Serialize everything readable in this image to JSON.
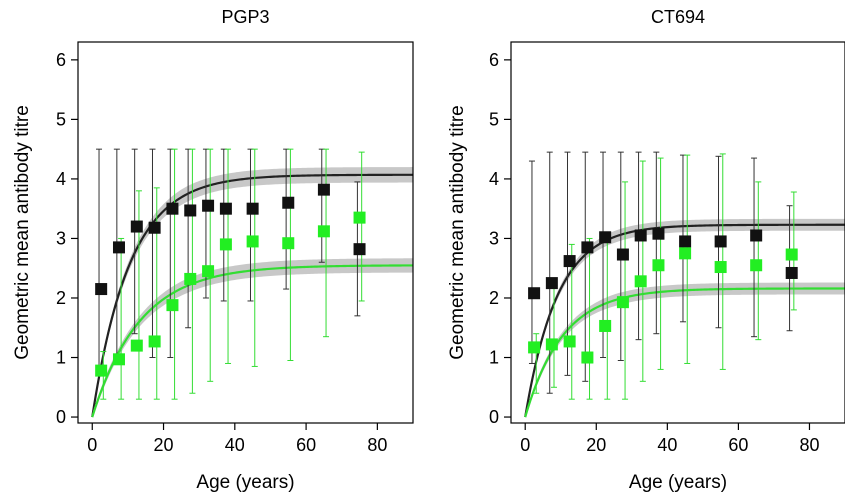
{
  "chart_data": [
    {
      "type": "scatter",
      "title": "PGP3",
      "xlabel": "Age (years)",
      "ylabel": "Geometric mean antibody titre",
      "xlim": [
        -4,
        90
      ],
      "ylim": [
        -0.1,
        6.3
      ],
      "xticks": [
        "0",
        "20",
        "40",
        "60",
        "80"
      ],
      "yticks": [
        "0",
        "1",
        "2",
        "3",
        "4",
        "5",
        "6"
      ],
      "grid": false,
      "series": [
        {
          "color": "#111111",
          "points": [
            {
              "x": 2.5,
              "y": 2.15,
              "low": 0.8,
              "high": 4.5
            },
            {
              "x": 7.5,
              "y": 2.85,
              "low": 0.9,
              "high": 4.5
            },
            {
              "x": 12.5,
              "y": 3.2,
              "low": 1.4,
              "high": 4.5
            },
            {
              "x": 17.5,
              "y": 3.18,
              "low": 1.0,
              "high": 4.5
            },
            {
              "x": 22.5,
              "y": 3.5,
              "low": 1.0,
              "high": 4.5
            },
            {
              "x": 27.5,
              "y": 3.47,
              "low": 1.5,
              "high": 4.5
            },
            {
              "x": 32.5,
              "y": 3.55,
              "low": 2.0,
              "high": 4.5
            },
            {
              "x": 37.5,
              "y": 3.5,
              "low": 1.95,
              "high": 4.5
            },
            {
              "x": 45,
              "y": 3.5,
              "low": 1.95,
              "high": 4.5
            },
            {
              "x": 55,
              "y": 3.6,
              "low": 2.15,
              "high": 4.5
            },
            {
              "x": 65,
              "y": 3.82,
              "low": 2.6,
              "high": 4.5
            },
            {
              "x": 75,
              "y": 2.82,
              "low": 1.7,
              "high": 3.95
            }
          ],
          "fit": {
            "asymptote": 4.07,
            "rate": 0.095,
            "band": 0.13
          }
        },
        {
          "color": "#22ee22",
          "points": [
            {
              "x": 2.5,
              "y": 0.78,
              "low": 0.3,
              "high": 1.1
            },
            {
              "x": 7.5,
              "y": 0.97,
              "low": 0.3,
              "high": 3.0
            },
            {
              "x": 12.5,
              "y": 1.2,
              "low": 0.3,
              "high": 3.8
            },
            {
              "x": 17.5,
              "y": 1.27,
              "low": 0.3,
              "high": 3.85
            },
            {
              "x": 22.5,
              "y": 1.88,
              "low": 0.3,
              "high": 4.5
            },
            {
              "x": 27.5,
              "y": 2.32,
              "low": 0.4,
              "high": 4.5
            },
            {
              "x": 32.5,
              "y": 2.45,
              "low": 0.6,
              "high": 4.5
            },
            {
              "x": 37.5,
              "y": 2.9,
              "low": 0.9,
              "high": 4.5
            },
            {
              "x": 45,
              "y": 2.95,
              "low": 0.85,
              "high": 4.5
            },
            {
              "x": 55,
              "y": 2.92,
              "low": 0.95,
              "high": 4.5
            },
            {
              "x": 65,
              "y": 3.12,
              "low": 1.35,
              "high": 4.5
            },
            {
              "x": 75,
              "y": 3.35,
              "low": 1.95,
              "high": 4.45
            }
          ],
          "fit": {
            "asymptote": 2.55,
            "rate": 0.075,
            "band": 0.12
          }
        }
      ]
    },
    {
      "type": "scatter",
      "title": "CT694",
      "xlabel": "Age (years)",
      "ylabel": "Geometric mean antibody titre",
      "xlim": [
        -4,
        90
      ],
      "ylim": [
        -0.1,
        6.3
      ],
      "xticks": [
        "0",
        "20",
        "40",
        "60",
        "80"
      ],
      "yticks": [
        "0",
        "1",
        "2",
        "3",
        "4",
        "5",
        "6"
      ],
      "grid": false,
      "series": [
        {
          "color": "#111111",
          "points": [
            {
              "x": 2.5,
              "y": 2.08,
              "low": 0.9,
              "high": 4.3
            },
            {
              "x": 7.5,
              "y": 2.25,
              "low": 0.4,
              "high": 4.45
            },
            {
              "x": 12.5,
              "y": 2.62,
              "low": 0.7,
              "high": 4.45
            },
            {
              "x": 17.5,
              "y": 2.85,
              "low": 0.6,
              "high": 4.45
            },
            {
              "x": 22.5,
              "y": 3.02,
              "low": 1.0,
              "high": 4.45
            },
            {
              "x": 27.5,
              "y": 2.73,
              "low": 0.95,
              "high": 4.45
            },
            {
              "x": 32.5,
              "y": 3.05,
              "low": 1.3,
              "high": 4.45
            },
            {
              "x": 37.5,
              "y": 3.08,
              "low": 1.4,
              "high": 4.45
            },
            {
              "x": 45,
              "y": 2.95,
              "low": 1.6,
              "high": 4.4
            },
            {
              "x": 55,
              "y": 2.95,
              "low": 1.5,
              "high": 4.38
            },
            {
              "x": 65,
              "y": 3.05,
              "low": 1.35,
              "high": 4.35
            },
            {
              "x": 75,
              "y": 2.42,
              "low": 1.45,
              "high": 3.55
            }
          ],
          "fit": {
            "asymptote": 3.23,
            "rate": 0.11,
            "band": 0.1
          }
        },
        {
          "color": "#22ee22",
          "points": [
            {
              "x": 2.5,
              "y": 1.17,
              "low": 0.4,
              "high": 1.4
            },
            {
              "x": 7.5,
              "y": 1.22,
              "low": 0.5,
              "high": 2.3
            },
            {
              "x": 12.5,
              "y": 1.27,
              "low": 0.3,
              "high": 2.9
            },
            {
              "x": 17.5,
              "y": 1.0,
              "low": 0.3,
              "high": 3.0
            },
            {
              "x": 22.5,
              "y": 1.53,
              "low": 0.3,
              "high": 3.0
            },
            {
              "x": 27.5,
              "y": 1.93,
              "low": 0.3,
              "high": 3.95
            },
            {
              "x": 32.5,
              "y": 2.28,
              "low": 0.6,
              "high": 4.3
            },
            {
              "x": 37.5,
              "y": 2.55,
              "low": 0.8,
              "high": 4.35
            },
            {
              "x": 45,
              "y": 2.75,
              "low": 0.9,
              "high": 4.4
            },
            {
              "x": 55,
              "y": 2.52,
              "low": 0.8,
              "high": 4.42
            },
            {
              "x": 65,
              "y": 2.55,
              "low": 1.3,
              "high": 3.95
            },
            {
              "x": 75,
              "y": 2.73,
              "low": 1.8,
              "high": 3.78
            }
          ],
          "fit": {
            "asymptote": 2.16,
            "rate": 0.095,
            "band": 0.1
          }
        }
      ]
    }
  ]
}
